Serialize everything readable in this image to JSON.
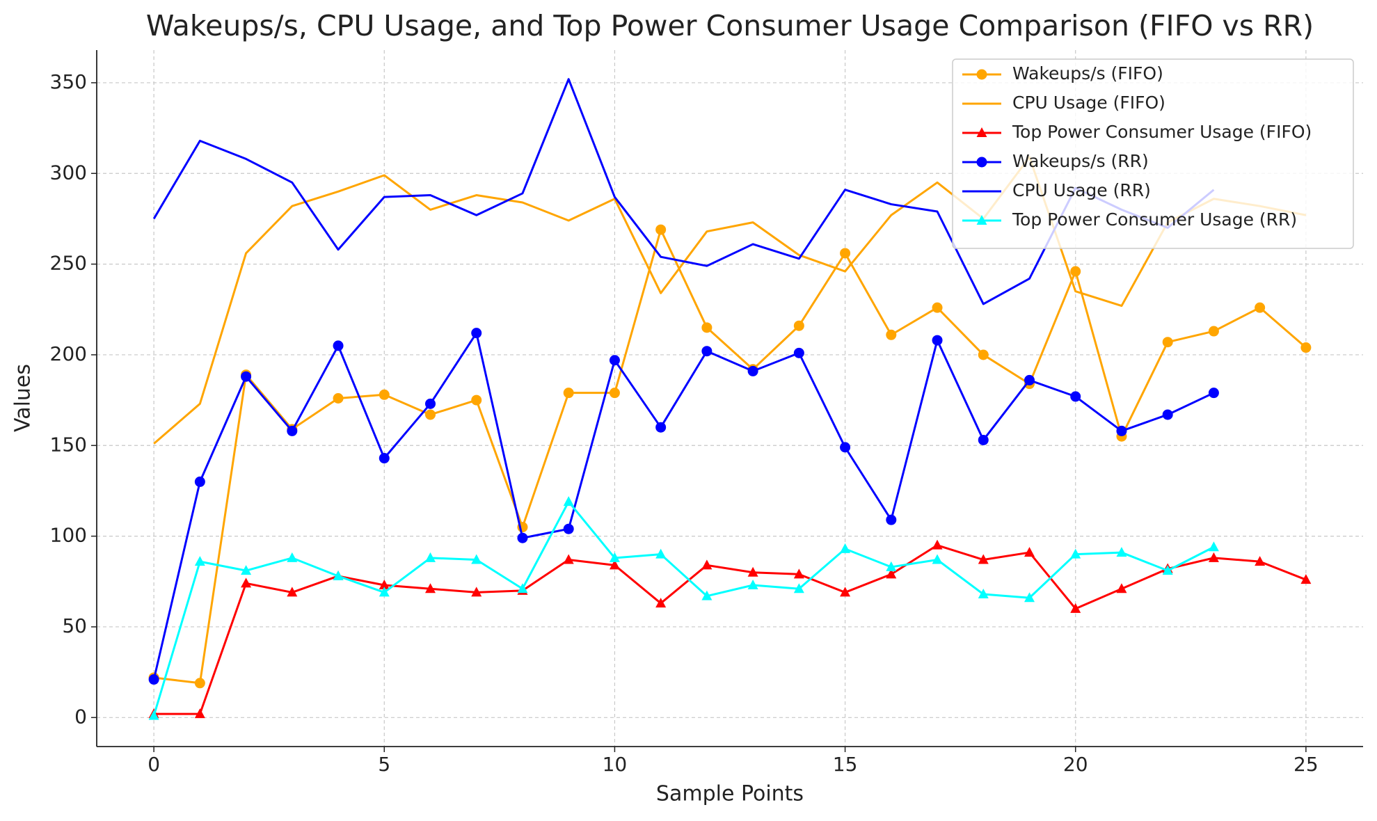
{
  "chart_data": {
    "type": "line",
    "title": "Wakeups/s, CPU Usage, and Top Power Consumer Usage Comparison (FIFO vs RR)",
    "xlabel": "Sample Points",
    "ylabel": "Values",
    "xlim": [
      -1.24,
      26.24
    ],
    "ylim": [
      -16,
      368
    ],
    "xticks": [
      0,
      5,
      10,
      15,
      20,
      25
    ],
    "yticks": [
      0,
      50,
      100,
      150,
      200,
      250,
      300,
      350
    ],
    "grid": true,
    "legend": "upper right",
    "series": [
      {
        "name": "Wakeups/s (FIFO)",
        "color": "#ffa500",
        "marker": "circle",
        "x": [
          0,
          1,
          2,
          3,
          4,
          5,
          6,
          7,
          8,
          9,
          10,
          11,
          12,
          13,
          14,
          15,
          16,
          17,
          18,
          19,
          20,
          21,
          22,
          23,
          24,
          25
        ],
        "values": [
          22,
          19,
          189,
          159,
          176,
          178,
          167,
          175,
          105,
          179,
          179,
          269,
          215,
          192,
          216,
          256,
          211,
          226,
          200,
          184,
          246,
          155,
          207,
          213,
          226,
          204
        ]
      },
      {
        "name": "CPU Usage (FIFO)",
        "color": "#ffa500",
        "marker": null,
        "x": [
          0,
          1,
          2,
          3,
          4,
          5,
          6,
          7,
          8,
          9,
          10,
          11,
          12,
          13,
          14,
          15,
          16,
          17,
          18,
          19,
          20,
          21,
          22,
          23,
          24,
          25
        ],
        "values": [
          151,
          173,
          256,
          282,
          290,
          299,
          280,
          288,
          284,
          274,
          286,
          234,
          268,
          273,
          255,
          246,
          277,
          295,
          275,
          309,
          235,
          227,
          273,
          286,
          282,
          277
        ]
      },
      {
        "name": "Top Power Consumer Usage (FIFO)",
        "color": "#ff0000",
        "marker": "triangle",
        "x": [
          0,
          1,
          2,
          3,
          4,
          5,
          6,
          7,
          8,
          9,
          10,
          11,
          12,
          13,
          14,
          15,
          16,
          17,
          18,
          19,
          20,
          21,
          22,
          23,
          24,
          25
        ],
        "values": [
          2,
          2,
          74,
          69,
          78,
          73,
          71,
          69,
          70,
          87,
          84,
          63,
          84,
          80,
          79,
          69,
          79,
          95,
          87,
          91,
          60,
          71,
          82,
          88,
          86,
          76
        ]
      },
      {
        "name": "Wakeups/s (RR)",
        "color": "#0000ff",
        "marker": "circle",
        "x": [
          0,
          1,
          2,
          3,
          4,
          5,
          6,
          7,
          8,
          9,
          10,
          11,
          12,
          13,
          14,
          15,
          16,
          17,
          18,
          19,
          20,
          21,
          22,
          23
        ],
        "values": [
          21,
          130,
          188,
          158,
          205,
          143,
          173,
          212,
          99,
          104,
          197,
          160,
          202,
          191,
          201,
          149,
          109,
          208,
          153,
          186,
          177,
          158,
          167,
          179
        ]
      },
      {
        "name": "CPU Usage (RR)",
        "color": "#0000ff",
        "marker": null,
        "x": [
          0,
          1,
          2,
          3,
          4,
          5,
          6,
          7,
          8,
          9,
          10,
          11,
          12,
          13,
          14,
          15,
          16,
          17,
          18,
          19,
          20,
          21,
          22,
          23
        ],
        "values": [
          275,
          318,
          308,
          295,
          258,
          287,
          288,
          277,
          289,
          352,
          287,
          254,
          249,
          261,
          253,
          291,
          283,
          279,
          228,
          242,
          292,
          280,
          270,
          291
        ]
      },
      {
        "name": "Top Power Consumer Usage (RR)",
        "color": "#00ffff",
        "marker": "triangle",
        "x": [
          0,
          1,
          2,
          3,
          4,
          5,
          6,
          7,
          8,
          9,
          10,
          11,
          12,
          13,
          14,
          15,
          16,
          17,
          18,
          19,
          20,
          21,
          22,
          23
        ],
        "values": [
          1,
          86,
          81,
          88,
          78,
          69,
          88,
          87,
          71,
          119,
          88,
          90,
          67,
          73,
          71,
          93,
          83,
          87,
          68,
          66,
          90,
          91,
          81,
          94
        ]
      }
    ]
  }
}
